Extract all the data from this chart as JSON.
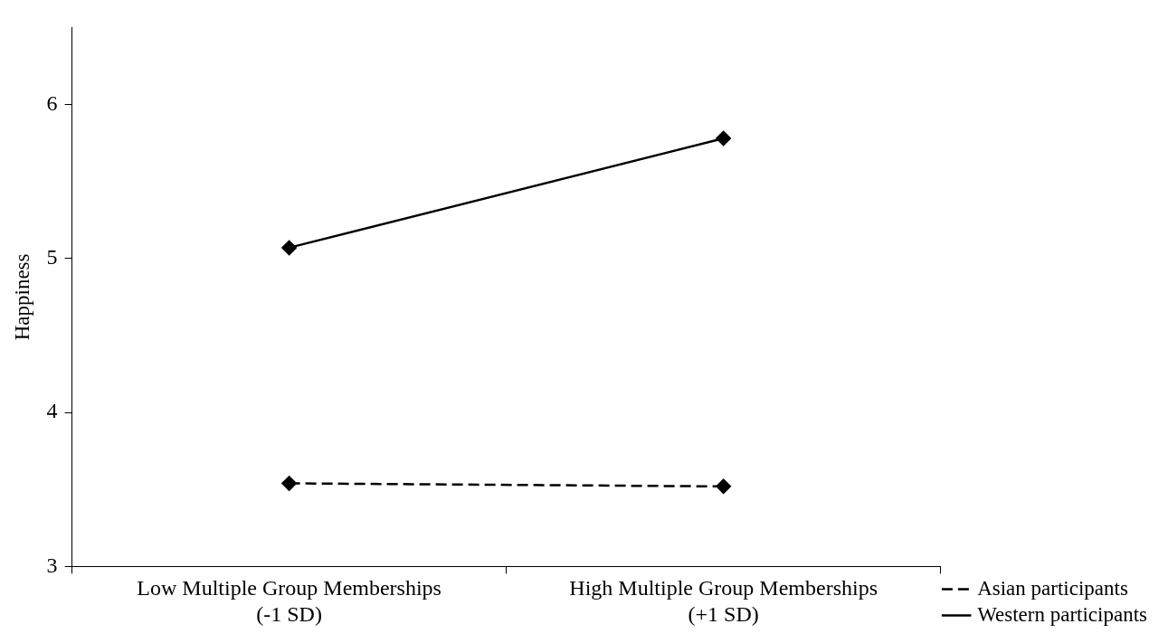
{
  "chart_data": {
    "type": "line",
    "ylabel": "Happiness",
    "categories": [
      "Low Multiple Group Memberships\n(-1 SD)",
      "High Multiple Group Memberships\n(+1 SD)"
    ],
    "series": [
      {
        "name": "Asian participants",
        "color": "#000000",
        "values": [
          3.54,
          3.52
        ],
        "line_style": "dashed"
      },
      {
        "name": "Western participants",
        "color": "#000000",
        "values": [
          5.07,
          5.78
        ],
        "line_style": "solid"
      }
    ],
    "ylim": [
      3,
      6.5
    ],
    "yticks": [
      3,
      4,
      5,
      6
    ],
    "grid": false,
    "legend": "bottom right",
    "marker": "diamond"
  }
}
